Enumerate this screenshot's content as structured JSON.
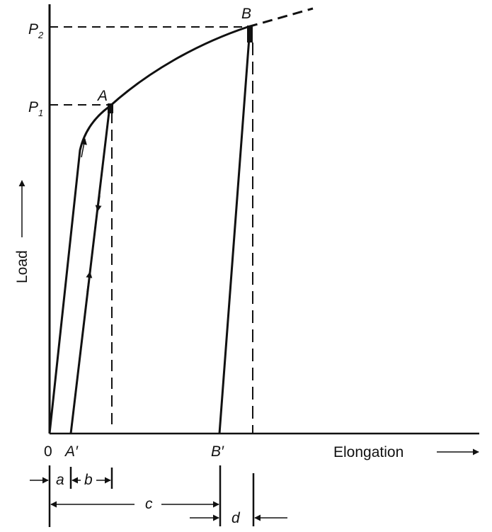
{
  "diagram": {
    "axes": {
      "x_label": "Elongation",
      "y_label": "Load"
    },
    "points": {
      "origin": "0",
      "A": "A",
      "B": "B",
      "A_prime": "A′",
      "B_prime": "B′"
    },
    "load_levels": [
      {
        "symbol": "P",
        "subscript": "1"
      },
      {
        "symbol": "P",
        "subscript": "2"
      }
    ],
    "dimensions": {
      "a": "a",
      "b": "b",
      "c": "c",
      "d": "d"
    }
  }
}
